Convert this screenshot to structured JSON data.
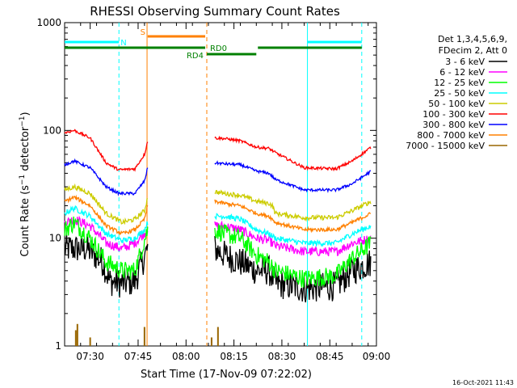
{
  "chart_data": {
    "type": "line",
    "title": "RHESSI Observing Summary Count Rates",
    "xlabel": "Start Time (17-Nov-09 07:22:02)",
    "ylabel": "Count Rate (s⁻¹ detector⁻¹)",
    "ylabel_parts": {
      "base": "Count Rate (s",
      "sup1": "−1",
      "mid": " detector",
      "sup2": "−1",
      "end": ")"
    },
    "x_unit": "minutes after 07:22:02",
    "xlim": [
      0,
      97.6
    ],
    "ylim": [
      1,
      1000
    ],
    "yscale": "log",
    "x_ticks": [
      {
        "label": "07:30",
        "x": 8
      },
      {
        "label": "07:45",
        "x": 23
      },
      {
        "label": "08:00",
        "x": 38
      },
      {
        "label": "08:15",
        "x": 53
      },
      {
        "label": "08:30",
        "x": 68
      },
      {
        "label": "08:45",
        "x": 83
      },
      {
        "label": "09:00",
        "x": 98
      }
    ],
    "y_ticks": [
      {
        "label": "1",
        "v": 1
      },
      {
        "label": "10",
        "v": 10
      },
      {
        "label": "100",
        "v": 100
      },
      {
        "label": "1000",
        "v": 1000
      }
    ],
    "legend_header": [
      "Det 1,3,4,5,6,9,",
      "FDecim 2, Att 0"
    ],
    "legend_position": "right",
    "series": [
      {
        "name": "3 - 6 keV",
        "color": "#000000",
        "noise": 0.32,
        "seg1": [
          [
            0,
            8
          ],
          [
            7,
            8
          ],
          [
            12,
            6
          ],
          [
            14,
            4
          ],
          [
            18,
            3.8
          ],
          [
            22,
            4
          ],
          [
            26,
            8
          ]
        ],
        "seg2": [
          [
            47,
            8
          ],
          [
            50,
            7
          ],
          [
            55,
            6
          ],
          [
            60,
            5
          ],
          [
            64,
            5
          ],
          [
            66,
            3.8
          ],
          [
            75,
            3.4
          ],
          [
            85,
            3.6
          ],
          [
            90,
            5
          ],
          [
            96,
            6
          ]
        ]
      },
      {
        "name": "6 - 12 keV",
        "color": "#ff00ff",
        "noise": 0.1,
        "seg1": [
          [
            0,
            14
          ],
          [
            3,
            15
          ],
          [
            8,
            13
          ],
          [
            13,
            9
          ],
          [
            18,
            8
          ],
          [
            22,
            9
          ],
          [
            26,
            12
          ]
        ],
        "seg2": [
          [
            47,
            13
          ],
          [
            50,
            13
          ],
          [
            55,
            12
          ],
          [
            60,
            10
          ],
          [
            64,
            9.5
          ],
          [
            66,
            8.5
          ],
          [
            75,
            7.5
          ],
          [
            85,
            7.5
          ],
          [
            90,
            9
          ],
          [
            96,
            10
          ]
        ]
      },
      {
        "name": "12 - 25 keV",
        "color": "#00ff00",
        "noise": 0.2,
        "seg1": [
          [
            0,
            12
          ],
          [
            3,
            14
          ],
          [
            8,
            10
          ],
          [
            13,
            6
          ],
          [
            18,
            5
          ],
          [
            22,
            5
          ],
          [
            26,
            12
          ]
        ],
        "seg2": [
          [
            47,
            12
          ],
          [
            50,
            11
          ],
          [
            55,
            10
          ],
          [
            60,
            7
          ],
          [
            64,
            6
          ],
          [
            66,
            5
          ],
          [
            75,
            4.2
          ],
          [
            85,
            4.5
          ],
          [
            90,
            6.5
          ],
          [
            96,
            9
          ]
        ]
      },
      {
        "name": "25 - 50 keV",
        "color": "#00ffff",
        "noise": 0.06,
        "seg1": [
          [
            0,
            17
          ],
          [
            3,
            19
          ],
          [
            8,
            16
          ],
          [
            13,
            11
          ],
          [
            18,
            9.5
          ],
          [
            22,
            10
          ],
          [
            25,
            12
          ],
          [
            26,
            14
          ]
        ],
        "seg2": [
          [
            47,
            16
          ],
          [
            50,
            16
          ],
          [
            55,
            15
          ],
          [
            60,
            12
          ],
          [
            64,
            11
          ],
          [
            66,
            10
          ],
          [
            75,
            9
          ],
          [
            85,
            9
          ],
          [
            90,
            11
          ],
          [
            96,
            13
          ]
        ]
      },
      {
        "name": "50 - 100 keV",
        "color": "#cccc00",
        "noise": 0.05,
        "seg1": [
          [
            0,
            28
          ],
          [
            3,
            30
          ],
          [
            8,
            26
          ],
          [
            13,
            17
          ],
          [
            18,
            14
          ],
          [
            22,
            15
          ],
          [
            25,
            18
          ],
          [
            26,
            24
          ]
        ],
        "seg2": [
          [
            47,
            27
          ],
          [
            50,
            26
          ],
          [
            55,
            25
          ],
          [
            60,
            22
          ],
          [
            64,
            21
          ],
          [
            65,
            20
          ],
          [
            66,
            17
          ],
          [
            75,
            15.5
          ],
          [
            85,
            15.5
          ],
          [
            90,
            18
          ],
          [
            96,
            22
          ]
        ]
      },
      {
        "name": "100 - 300 keV",
        "color": "#ff0000",
        "noise": 0.03,
        "seg1": [
          [
            0,
            95
          ],
          [
            3,
            100
          ],
          [
            8,
            85
          ],
          [
            13,
            50
          ],
          [
            17,
            43
          ],
          [
            22,
            44
          ],
          [
            25,
            60
          ],
          [
            26,
            80
          ]
        ],
        "seg2": [
          [
            47,
            85
          ],
          [
            50,
            84
          ],
          [
            55,
            80
          ],
          [
            60,
            70
          ],
          [
            64,
            68
          ],
          [
            66,
            62
          ],
          [
            75,
            45
          ],
          [
            85,
            44
          ],
          [
            90,
            52
          ],
          [
            96,
            70
          ]
        ]
      },
      {
        "name": "300 - 800 keV",
        "color": "#0000ff",
        "noise": 0.03,
        "seg1": [
          [
            0,
            48
          ],
          [
            3,
            52
          ],
          [
            8,
            45
          ],
          [
            13,
            30
          ],
          [
            17,
            26
          ],
          [
            22,
            26
          ],
          [
            25,
            34
          ],
          [
            26,
            45
          ]
        ],
        "seg2": [
          [
            47,
            50
          ],
          [
            50,
            49
          ],
          [
            55,
            48
          ],
          [
            60,
            42
          ],
          [
            64,
            40
          ],
          [
            66,
            35
          ],
          [
            75,
            28
          ],
          [
            85,
            28
          ],
          [
            90,
            32
          ],
          [
            96,
            42
          ]
        ]
      },
      {
        "name": "800 - 7000 keV",
        "color": "#ff8000",
        "noise": 0.04,
        "seg1": [
          [
            0,
            22
          ],
          [
            3,
            24
          ],
          [
            8,
            20
          ],
          [
            13,
            13
          ],
          [
            18,
            11
          ],
          [
            22,
            12
          ],
          [
            25,
            15
          ],
          [
            26,
            20
          ]
        ],
        "seg2": [
          [
            47,
            22
          ],
          [
            50,
            21
          ],
          [
            55,
            20
          ],
          [
            60,
            17
          ],
          [
            64,
            16
          ],
          [
            66,
            14
          ],
          [
            75,
            12
          ],
          [
            85,
            12
          ],
          [
            90,
            14
          ],
          [
            96,
            17
          ]
        ]
      },
      {
        "name": "7000 - 15000 keV",
        "color": "#996600",
        "noise": 0,
        "seg1": [],
        "seg2": []
      }
    ],
    "spikes": [
      [
        3.5,
        1.4
      ],
      [
        4,
        1.6
      ],
      [
        8,
        1.2
      ],
      [
        25,
        1.5
      ],
      [
        46,
        1.2
      ],
      [
        48,
        1.5
      ]
    ],
    "vlines": [
      {
        "x": 17,
        "color": "#00ffff",
        "dashed": true
      },
      {
        "x": 25.8,
        "color": "#ff8000",
        "dashed": false
      },
      {
        "x": 44.5,
        "color": "#ff8000",
        "dashed": true
      },
      {
        "x": 76,
        "color": "#00ffff",
        "dashed": false
      },
      {
        "x": 93,
        "color": "#00ffff",
        "dashed": true
      }
    ],
    "flags": [
      {
        "label": "N",
        "color": "#00ffff",
        "segments": [
          [
            0,
            17
          ],
          [
            76,
            93
          ]
        ],
        "level": 1.5
      },
      {
        "label": "S",
        "color": "#ff8000",
        "segments": [
          [
            26,
            44
          ]
        ],
        "level": 2.2
      },
      {
        "label": "RD4",
        "color": "#008000",
        "segments": [
          [
            0,
            44
          ]
        ],
        "level": 0.8
      },
      {
        "label": "RD0",
        "color": "#008000",
        "segments": [
          [
            44.5,
            60
          ]
        ],
        "level": 0
      },
      {
        "label": "",
        "color": "#008000",
        "segments": [
          [
            60.5,
            93
          ]
        ],
        "level": 0.8
      }
    ]
  },
  "footer_timestamp": "16-Oct-2021 11:43"
}
